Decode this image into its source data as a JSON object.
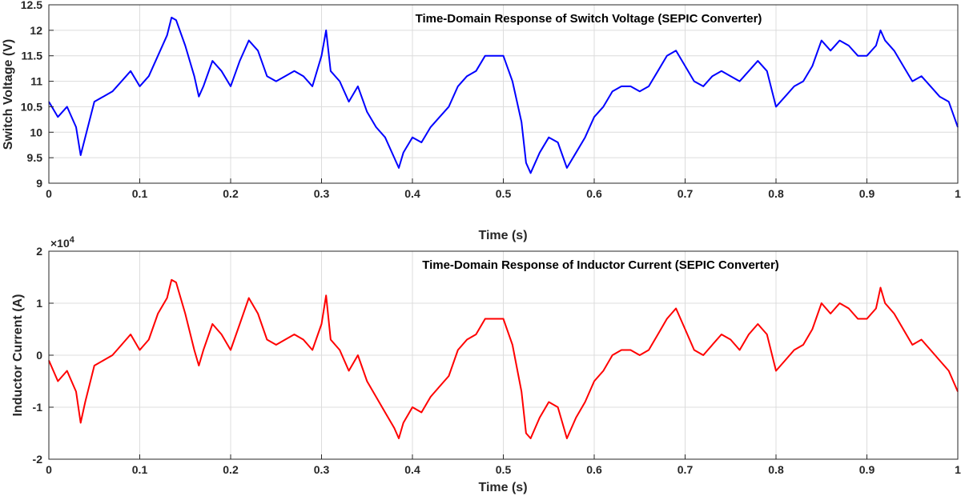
{
  "chart_data": [
    {
      "type": "line",
      "title": "Time-Domain Response of Switch Voltage (SEPIC Converter)",
      "xlabel": "Time (s)",
      "ylabel": "Switch Voltage (V)",
      "xlim": [
        0,
        1
      ],
      "ylim": [
        9,
        12.5
      ],
      "xticks": [
        "0",
        "0.1",
        "0.2",
        "0.3",
        "0.4",
        "0.5",
        "0.6",
        "0.7",
        "0.8",
        "0.9",
        "1"
      ],
      "yticks": [
        "9",
        "9.5",
        "10",
        "10.5",
        "11",
        "11.5",
        "12",
        "12.5"
      ],
      "grid": true,
      "color": "#0000ff",
      "x": [
        0,
        0.01,
        0.02,
        0.03,
        0.035,
        0.04,
        0.05,
        0.06,
        0.07,
        0.08,
        0.09,
        0.1,
        0.11,
        0.12,
        0.13,
        0.135,
        0.14,
        0.15,
        0.16,
        0.165,
        0.17,
        0.18,
        0.19,
        0.2,
        0.21,
        0.22,
        0.23,
        0.24,
        0.25,
        0.26,
        0.27,
        0.28,
        0.29,
        0.3,
        0.305,
        0.31,
        0.32,
        0.33,
        0.34,
        0.35,
        0.36,
        0.37,
        0.38,
        0.385,
        0.39,
        0.4,
        0.41,
        0.42,
        0.43,
        0.44,
        0.45,
        0.46,
        0.47,
        0.48,
        0.49,
        0.5,
        0.51,
        0.52,
        0.525,
        0.53,
        0.54,
        0.55,
        0.56,
        0.57,
        0.58,
        0.59,
        0.6,
        0.61,
        0.62,
        0.63,
        0.64,
        0.65,
        0.66,
        0.67,
        0.68,
        0.69,
        0.7,
        0.71,
        0.72,
        0.73,
        0.74,
        0.75,
        0.76,
        0.77,
        0.78,
        0.79,
        0.8,
        0.81,
        0.82,
        0.83,
        0.84,
        0.85,
        0.86,
        0.87,
        0.88,
        0.89,
        0.9,
        0.91,
        0.915,
        0.92,
        0.93,
        0.94,
        0.95,
        0.96,
        0.97,
        0.98,
        0.99,
        1.0
      ],
      "y": [
        10.6,
        10.3,
        10.5,
        10.1,
        9.55,
        9.9,
        10.6,
        10.7,
        10.8,
        11.0,
        11.2,
        10.9,
        11.1,
        11.5,
        11.9,
        12.25,
        12.2,
        11.7,
        11.1,
        10.7,
        10.9,
        11.4,
        11.2,
        10.9,
        11.4,
        11.8,
        11.6,
        11.1,
        11.0,
        11.1,
        11.2,
        11.1,
        10.9,
        11.5,
        12.0,
        11.2,
        11.0,
        10.6,
        10.9,
        10.4,
        10.1,
        9.9,
        9.5,
        9.3,
        9.6,
        9.9,
        9.8,
        10.1,
        10.3,
        10.5,
        10.9,
        11.1,
        11.2,
        11.5,
        11.5,
        11.5,
        11.0,
        10.2,
        9.4,
        9.2,
        9.6,
        9.9,
        9.8,
        9.3,
        9.6,
        9.9,
        10.3,
        10.5,
        10.8,
        10.9,
        10.9,
        10.8,
        10.9,
        11.2,
        11.5,
        11.6,
        11.3,
        11.0,
        10.9,
        11.1,
        11.2,
        11.1,
        11.0,
        11.2,
        11.4,
        11.2,
        10.5,
        10.7,
        10.9,
        11.0,
        11.3,
        11.8,
        11.6,
        11.8,
        11.7,
        11.5,
        11.5,
        11.7,
        12.0,
        11.8,
        11.6,
        11.3,
        11.0,
        11.1,
        10.9,
        10.7,
        10.6,
        10.1
      ]
    },
    {
      "type": "line",
      "title": "Time-Domain Response of Inductor Current (SEPIC Converter)",
      "xlabel": "Time (s)",
      "ylabel": "Inductor Current (A)",
      "xlim": [
        0,
        1
      ],
      "ylim": [
        -2,
        2
      ],
      "y_multiplier": "×10",
      "y_multiplier_exp": "4",
      "xticks": [
        "0",
        "0.1",
        "0.2",
        "0.3",
        "0.4",
        "0.5",
        "0.6",
        "0.7",
        "0.8",
        "0.9",
        "1"
      ],
      "yticks": [
        "-2",
        "-1",
        "0",
        "1",
        "2"
      ],
      "grid": true,
      "color": "#ff0000",
      "x": [
        0,
        0.01,
        0.02,
        0.03,
        0.035,
        0.04,
        0.05,
        0.06,
        0.07,
        0.08,
        0.09,
        0.1,
        0.11,
        0.12,
        0.13,
        0.135,
        0.14,
        0.15,
        0.16,
        0.165,
        0.17,
        0.18,
        0.19,
        0.2,
        0.21,
        0.22,
        0.23,
        0.24,
        0.25,
        0.26,
        0.27,
        0.28,
        0.29,
        0.3,
        0.305,
        0.31,
        0.32,
        0.33,
        0.34,
        0.35,
        0.36,
        0.37,
        0.38,
        0.385,
        0.39,
        0.4,
        0.41,
        0.42,
        0.43,
        0.44,
        0.45,
        0.46,
        0.47,
        0.48,
        0.49,
        0.5,
        0.51,
        0.52,
        0.525,
        0.53,
        0.54,
        0.55,
        0.56,
        0.57,
        0.58,
        0.59,
        0.6,
        0.61,
        0.62,
        0.63,
        0.64,
        0.65,
        0.66,
        0.67,
        0.68,
        0.69,
        0.7,
        0.71,
        0.72,
        0.73,
        0.74,
        0.75,
        0.76,
        0.77,
        0.78,
        0.79,
        0.8,
        0.81,
        0.82,
        0.83,
        0.84,
        0.85,
        0.86,
        0.87,
        0.88,
        0.89,
        0.9,
        0.91,
        0.915,
        0.92,
        0.93,
        0.94,
        0.95,
        0.96,
        0.97,
        0.98,
        0.99,
        1.0
      ],
      "y": [
        -0.1,
        -0.5,
        -0.3,
        -0.7,
        -1.3,
        -0.9,
        -0.2,
        -0.1,
        0.0,
        0.2,
        0.4,
        0.1,
        0.3,
        0.8,
        1.1,
        1.45,
        1.4,
        0.8,
        0.1,
        -0.2,
        0.1,
        0.6,
        0.4,
        0.1,
        0.6,
        1.1,
        0.8,
        0.3,
        0.2,
        0.3,
        0.4,
        0.3,
        0.1,
        0.6,
        1.15,
        0.3,
        0.1,
        -0.3,
        0.0,
        -0.5,
        -0.8,
        -1.1,
        -1.4,
        -1.6,
        -1.3,
        -1.0,
        -1.1,
        -0.8,
        -0.6,
        -0.4,
        0.1,
        0.3,
        0.4,
        0.7,
        0.7,
        0.7,
        0.2,
        -0.7,
        -1.5,
        -1.6,
        -1.2,
        -0.9,
        -1.0,
        -1.6,
        -1.2,
        -0.9,
        -0.5,
        -0.3,
        0.0,
        0.1,
        0.1,
        0.0,
        0.1,
        0.4,
        0.7,
        0.9,
        0.5,
        0.1,
        0.0,
        0.2,
        0.4,
        0.3,
        0.1,
        0.4,
        0.6,
        0.4,
        -0.3,
        -0.1,
        0.1,
        0.2,
        0.5,
        1.0,
        0.8,
        1.0,
        0.9,
        0.7,
        0.7,
        0.9,
        1.3,
        1.0,
        0.8,
        0.5,
        0.2,
        0.3,
        0.1,
        -0.1,
        -0.3,
        -0.7
      ]
    }
  ]
}
